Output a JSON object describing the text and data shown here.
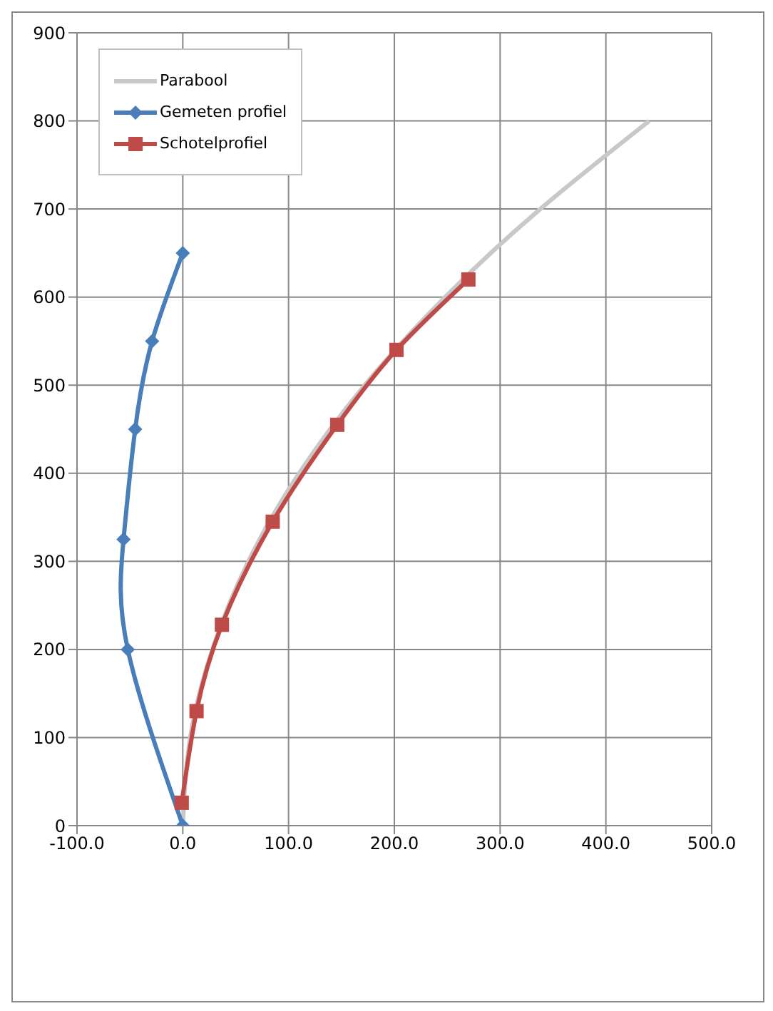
{
  "chart_data": {
    "type": "line",
    "xlim": [
      -100,
      500
    ],
    "xticks": [
      {
        "value": -100,
        "label": "-100.0"
      },
      {
        "value": 0,
        "label": "0.0"
      },
      {
        "value": 100,
        "label": "100.0"
      },
      {
        "value": 200,
        "label": "200.0"
      },
      {
        "value": 300,
        "label": "300.0"
      },
      {
        "value": 400,
        "label": "400.0"
      },
      {
        "value": 500,
        "label": "500.0"
      }
    ],
    "ylim": [
      0,
      900
    ],
    "yticks": [
      0,
      100,
      200,
      300,
      400,
      500,
      600,
      700,
      800,
      900
    ],
    "grid": true,
    "legend": "top left",
    "series": [
      {
        "name": "Parabool",
        "color": "#c8c8c8",
        "marker": "none",
        "x": [
          0,
          7,
          28,
          62,
          110,
          172,
          248,
          338,
          441
        ],
        "values": [
          0,
          100,
          200,
          300,
          400,
          500,
          600,
          700,
          800
        ]
      },
      {
        "name": "Gemeten profiel",
        "color": "#4a7ebb",
        "marker": "diamond",
        "x": [
          0,
          -52,
          -56,
          -45,
          -29,
          0
        ],
        "values": [
          0,
          200,
          325,
          450,
          550,
          650
        ]
      },
      {
        "name": "Schotelprofiel",
        "color": "#be4b48",
        "marker": "square",
        "x": [
          -1,
          13,
          37,
          85,
          146,
          202,
          270
        ],
        "values": [
          26,
          130,
          228,
          345,
          455,
          540,
          620
        ]
      }
    ]
  }
}
